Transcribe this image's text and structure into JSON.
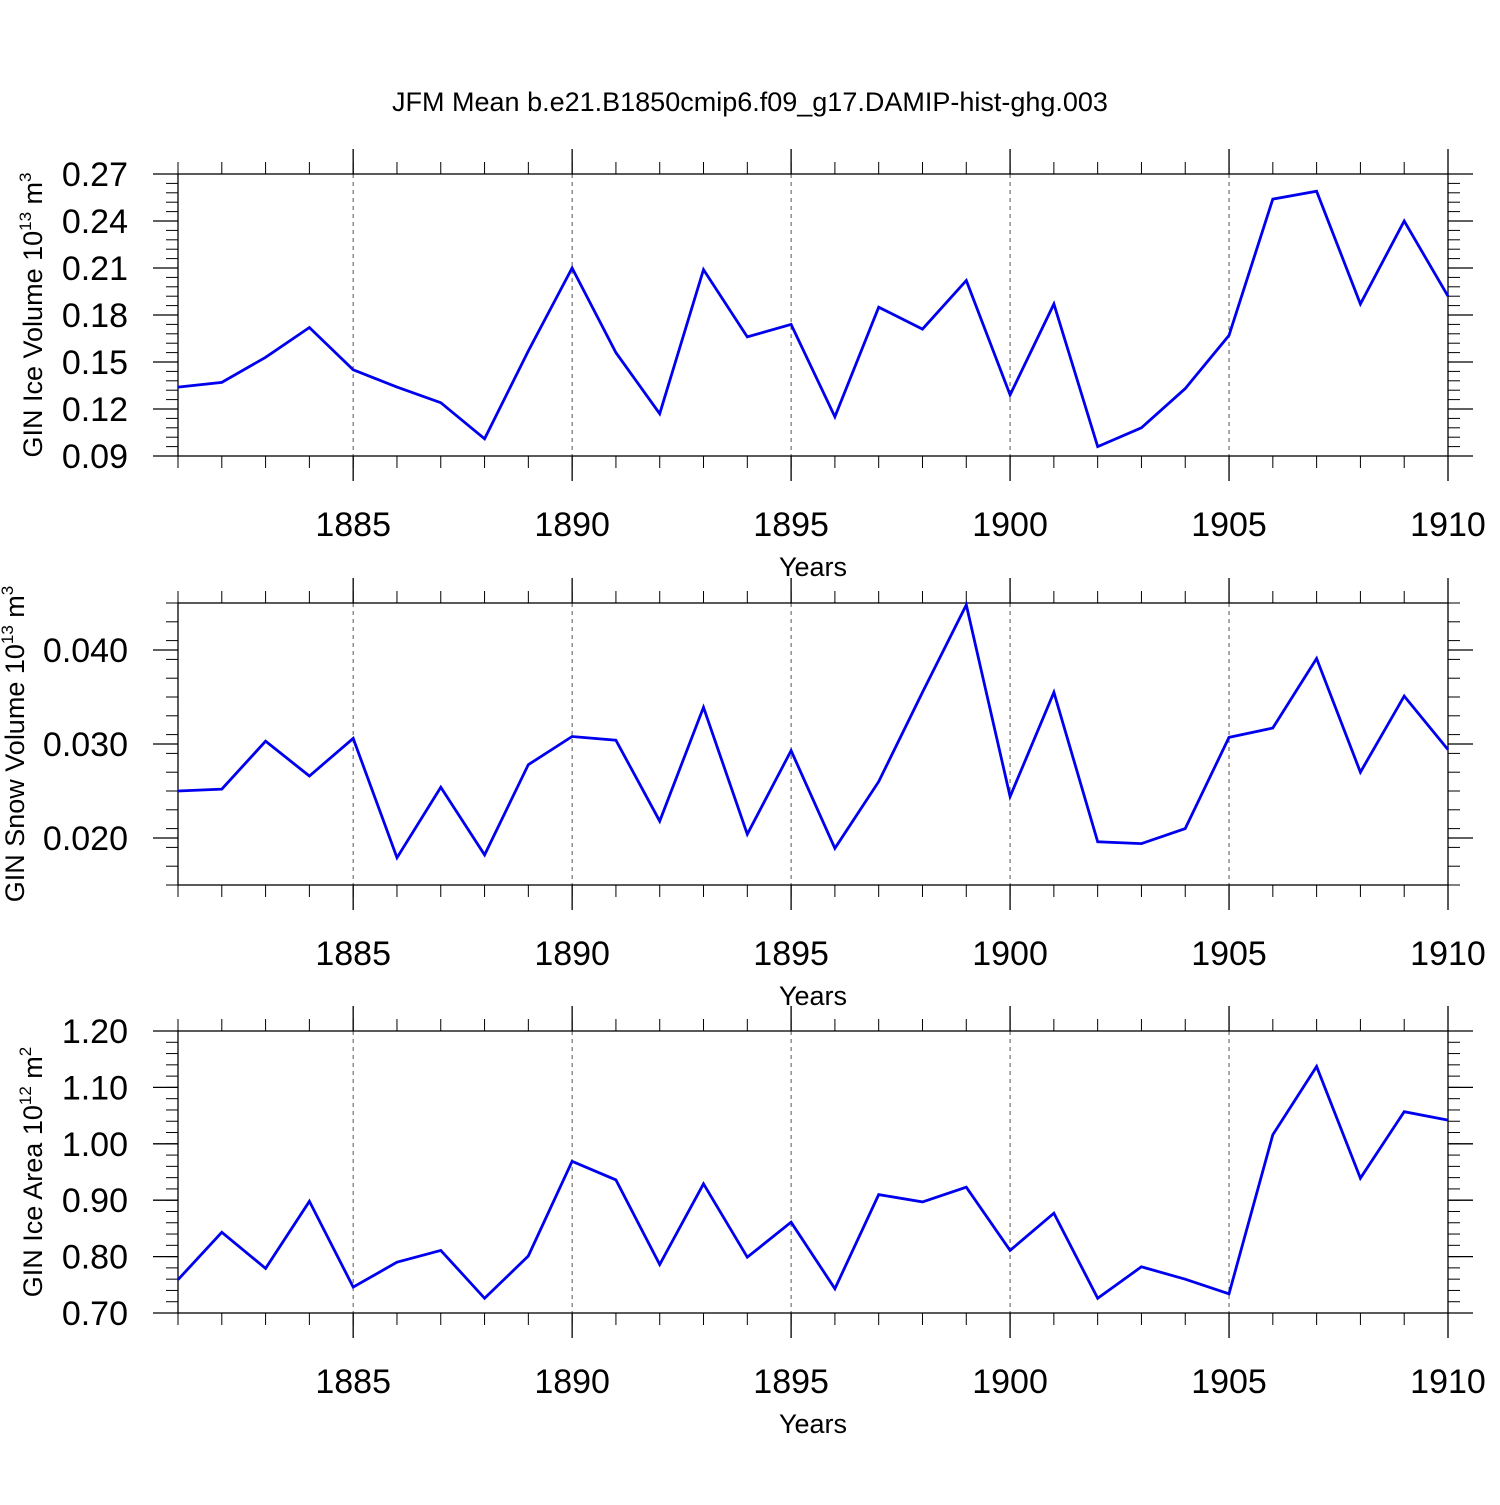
{
  "title": "JFM Mean b.e21.B1850cmip6.f09_g17.DAMIP-hist-ghg.003",
  "line_color": "#0000ee",
  "chart_data": [
    {
      "type": "line",
      "name": "ice-volume",
      "ylabel_main": "GIN Ice Volume 10",
      "ylabel_exp": "13",
      "ylabel_unit": " m",
      "ylabel_unit_exp": "3",
      "xlabel": "Years",
      "xlim": [
        1881,
        1910
      ],
      "ylim": [
        0.09,
        0.27
      ],
      "x_ticks": [
        1885,
        1890,
        1895,
        1900,
        1905,
        1910
      ],
      "x_tick_labels": [
        "1885",
        "1890",
        "1895",
        "1900",
        "1905",
        "1910"
      ],
      "y_ticks": [
        0.09,
        0.12,
        0.15,
        0.18,
        0.21,
        0.24,
        0.27
      ],
      "y_tick_labels": [
        "0.09",
        "0.12",
        "0.15",
        "0.18",
        "0.21",
        "0.24",
        "0.27"
      ],
      "y_minor_step": 0.006,
      "x": [
        1881,
        1882,
        1883,
        1884,
        1885,
        1886,
        1887,
        1888,
        1889,
        1890,
        1891,
        1892,
        1893,
        1894,
        1895,
        1896,
        1897,
        1898,
        1899,
        1900,
        1901,
        1902,
        1903,
        1904,
        1905,
        1906,
        1907,
        1908,
        1909,
        1910
      ],
      "values": [
        0.134,
        0.137,
        0.153,
        0.172,
        0.145,
        0.134,
        0.124,
        0.101,
        0.157,
        0.21,
        0.156,
        0.117,
        0.209,
        0.166,
        0.174,
        0.115,
        0.185,
        0.171,
        0.202,
        0.129,
        0.187,
        0.096,
        0.108,
        0.133,
        0.167,
        0.254,
        0.259,
        0.187,
        0.24,
        0.192
      ]
    },
    {
      "type": "line",
      "name": "snow-volume",
      "ylabel_main": "GIN Snow Volume 10",
      "ylabel_exp": "13",
      "ylabel_unit": " m",
      "ylabel_unit_exp": "3",
      "xlabel": "Years",
      "xlim": [
        1881,
        1910
      ],
      "ylim": [
        0.015,
        0.045
      ],
      "x_ticks": [
        1885,
        1890,
        1895,
        1900,
        1905,
        1910
      ],
      "x_tick_labels": [
        "1885",
        "1890",
        "1895",
        "1900",
        "1905",
        "1910"
      ],
      "y_ticks": [
        0.02,
        0.03,
        0.04
      ],
      "y_tick_labels": [
        "0.020",
        "0.030",
        "0.040"
      ],
      "y_minor_step": 0.002,
      "x": [
        1881,
        1882,
        1883,
        1884,
        1885,
        1886,
        1887,
        1888,
        1889,
        1890,
        1891,
        1892,
        1893,
        1894,
        1895,
        1896,
        1897,
        1898,
        1899,
        1900,
        1901,
        1902,
        1903,
        1904,
        1905,
        1906,
        1907,
        1908,
        1909,
        1910
      ],
      "values": [
        0.025,
        0.0252,
        0.0303,
        0.0266,
        0.0306,
        0.0179,
        0.0254,
        0.0182,
        0.0278,
        0.0308,
        0.0304,
        0.0218,
        0.0339,
        0.0204,
        0.0293,
        0.0189,
        0.026,
        0.0355,
        0.0448,
        0.0244,
        0.0355,
        0.0196,
        0.0194,
        0.021,
        0.0307,
        0.0317,
        0.0391,
        0.027,
        0.0351,
        0.0294
      ]
    },
    {
      "type": "line",
      "name": "ice-area",
      "ylabel_main": "GIN Ice Area 10",
      "ylabel_exp": "12",
      "ylabel_unit": " m",
      "ylabel_unit_exp": "2",
      "xlabel": "Years",
      "xlim": [
        1881,
        1910
      ],
      "ylim": [
        0.7,
        1.2
      ],
      "x_ticks": [
        1885,
        1890,
        1895,
        1900,
        1905,
        1910
      ],
      "x_tick_labels": [
        "1885",
        "1890",
        "1895",
        "1900",
        "1905",
        "1910"
      ],
      "y_ticks": [
        0.7,
        0.8,
        0.9,
        1.0,
        1.1,
        1.2
      ],
      "y_tick_labels": [
        "0.70",
        "0.80",
        "0.90",
        "1.00",
        "1.10",
        "1.20"
      ],
      "y_minor_step": 0.02,
      "x": [
        1881,
        1882,
        1883,
        1884,
        1885,
        1886,
        1887,
        1888,
        1889,
        1890,
        1891,
        1892,
        1893,
        1894,
        1895,
        1896,
        1897,
        1898,
        1899,
        1900,
        1901,
        1902,
        1903,
        1904,
        1905,
        1906,
        1907,
        1908,
        1909,
        1910
      ],
      "values": [
        0.759,
        0.843,
        0.779,
        0.898,
        0.746,
        0.79,
        0.811,
        0.726,
        0.801,
        0.969,
        0.936,
        0.786,
        0.929,
        0.799,
        0.861,
        0.743,
        0.91,
        0.897,
        0.923,
        0.811,
        0.877,
        0.726,
        0.782,
        0.76,
        0.734,
        1.016,
        1.137,
        0.939,
        1.057,
        1.042
      ]
    }
  ]
}
